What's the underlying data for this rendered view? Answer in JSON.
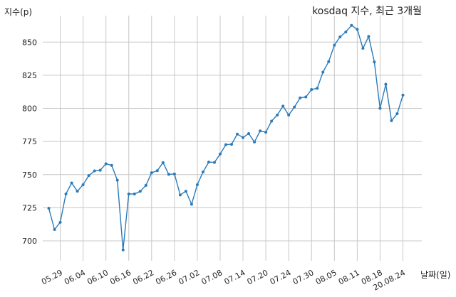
{
  "chart_data": {
    "type": "line",
    "title": "kosdaq 지수, 최근 3개월",
    "ylabel": "지수(p)",
    "xlabel": "날짜(일)",
    "ylim": [
      685,
      870
    ],
    "yticks": [
      700,
      725,
      750,
      775,
      800,
      825,
      850
    ],
    "xticks": [
      "05.29",
      "06.04",
      "06.10",
      "06.16",
      "06.22",
      "06.26",
      "07.02",
      "07.08",
      "07.14",
      "07.20",
      "07.24",
      "07.30",
      "08.05",
      "08.11",
      "08.18",
      "20.08.24"
    ],
    "xtick_index": [
      2,
      6,
      10,
      14,
      18,
      22,
      26,
      30,
      34,
      38,
      42,
      46,
      50,
      54,
      58,
      62
    ],
    "line_color": "#2b7bb9",
    "grid": true,
    "series": [
      {
        "values": [
          724.6,
          708.6,
          714.0,
          735.4,
          743.7,
          737.5,
          742.4,
          749.3,
          752.8,
          753.3,
          758.2,
          757.0,
          745.8,
          693.2,
          735.4,
          735.4,
          737.4,
          741.9,
          751.4,
          753.0,
          759.1,
          750.2,
          750.5,
          734.7,
          737.5,
          727.6,
          742.4,
          752.0,
          759.5,
          759.2,
          765.6,
          772.6,
          772.9,
          780.6,
          778.0,
          781.0,
          774.6,
          783.0,
          782.0,
          790.4,
          795.0,
          801.7,
          795.0,
          801.0,
          807.9,
          808.6,
          814.2,
          815.2,
          827.4,
          835.3,
          847.7,
          854.0,
          857.7,
          862.6,
          859.7,
          845.3,
          854.3,
          835.0,
          800.0,
          818.2,
          790.7,
          796.0,
          810.0
        ]
      }
    ]
  }
}
